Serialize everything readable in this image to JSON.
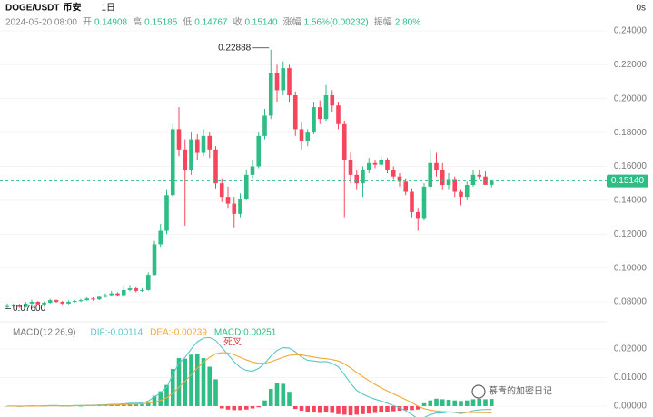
{
  "header": {
    "symbol": "DOGE/USDT",
    "exchange": "币安",
    "interval": "1日",
    "timer": "0s",
    "time": "2024-05-20 08:00",
    "stats": [
      {
        "label": "开",
        "value": "0.14908"
      },
      {
        "label": "高",
        "value": "0.15185"
      },
      {
        "label": "低",
        "value": "0.14767"
      },
      {
        "label": "收",
        "value": "0.15140"
      },
      {
        "label": "涨幅",
        "value": "1.56%(0.00232)"
      },
      {
        "label": "振幅",
        "value": "2.80%"
      }
    ]
  },
  "chart_data": [
    {
      "type": "candlestick",
      "open": [
        0.077,
        0.0775,
        0.078,
        0.077,
        0.079,
        0.08,
        0.0785,
        0.0795,
        0.081,
        0.08,
        0.079,
        0.08,
        0.0805,
        0.081,
        0.082,
        0.0815,
        0.083,
        0.084,
        0.085,
        0.084,
        0.087,
        0.088,
        0.0865,
        0.087,
        0.096,
        0.114,
        0.122,
        0.143,
        0.182,
        0.17,
        0.158,
        0.176,
        0.168,
        0.178,
        0.17,
        0.15,
        0.142,
        0.138,
        0.132,
        0.141,
        0.155,
        0.16,
        0.178,
        0.19,
        0.215,
        0.205,
        0.218,
        0.202,
        0.182,
        0.175,
        0.18,
        0.195,
        0.188,
        0.202,
        0.196,
        0.185,
        0.164,
        0.155,
        0.15,
        0.158,
        0.162,
        0.161,
        0.164,
        0.158,
        0.154,
        0.151,
        0.145,
        0.133,
        0.129,
        0.148,
        0.162,
        0.158,
        0.149,
        0.152,
        0.145,
        0.142,
        0.149,
        0.155,
        0.154,
        0.14908
      ],
      "high": [
        0.079,
        0.079,
        0.0788,
        0.08,
        0.0812,
        0.0805,
        0.0802,
        0.0818,
        0.0815,
        0.0806,
        0.0808,
        0.0812,
        0.0818,
        0.0828,
        0.0826,
        0.0838,
        0.085,
        0.0865,
        0.0856,
        0.0895,
        0.09,
        0.0886,
        0.088,
        0.0975,
        0.116,
        0.126,
        0.146,
        0.185,
        0.195,
        0.176,
        0.18,
        0.179,
        0.182,
        0.18,
        0.172,
        0.153,
        0.148,
        0.142,
        0.144,
        0.158,
        0.164,
        0.18,
        0.194,
        0.22888,
        0.22,
        0.222,
        0.22,
        0.204,
        0.186,
        0.182,
        0.198,
        0.199,
        0.208,
        0.205,
        0.198,
        0.187,
        0.168,
        0.158,
        0.16,
        0.165,
        0.164,
        0.166,
        0.165,
        0.16,
        0.156,
        0.153,
        0.147,
        0.135,
        0.15,
        0.17,
        0.168,
        0.162,
        0.156,
        0.154,
        0.146,
        0.151,
        0.158,
        0.158,
        0.157,
        0.15185
      ],
      "low": [
        0.076,
        0.0768,
        0.0765,
        0.0766,
        0.0785,
        0.0778,
        0.078,
        0.079,
        0.0794,
        0.0784,
        0.0786,
        0.0796,
        0.08,
        0.0806,
        0.0808,
        0.081,
        0.0825,
        0.0834,
        0.0832,
        0.0836,
        0.0862,
        0.0856,
        0.0858,
        0.0866,
        0.0955,
        0.112,
        0.12,
        0.142,
        0.166,
        0.125,
        0.155,
        0.164,
        0.166,
        0.165,
        0.147,
        0.139,
        0.135,
        0.124,
        0.13,
        0.14,
        0.153,
        0.159,
        0.176,
        0.188,
        0.198,
        0.202,
        0.198,
        0.178,
        0.17,
        0.172,
        0.179,
        0.185,
        0.187,
        0.192,
        0.182,
        0.13,
        0.15,
        0.146,
        0.142,
        0.156,
        0.159,
        0.16,
        0.156,
        0.152,
        0.148,
        0.143,
        0.13,
        0.122,
        0.128,
        0.146,
        0.154,
        0.146,
        0.146,
        0.142,
        0.137,
        0.14,
        0.148,
        0.152,
        0.149,
        0.14767
      ],
      "close": [
        0.0775,
        0.078,
        0.077,
        0.079,
        0.08,
        0.0785,
        0.0795,
        0.081,
        0.08,
        0.079,
        0.08,
        0.0805,
        0.081,
        0.082,
        0.0815,
        0.083,
        0.084,
        0.085,
        0.084,
        0.087,
        0.088,
        0.0865,
        0.087,
        0.096,
        0.114,
        0.122,
        0.143,
        0.182,
        0.17,
        0.158,
        0.176,
        0.168,
        0.178,
        0.17,
        0.15,
        0.142,
        0.138,
        0.132,
        0.141,
        0.155,
        0.16,
        0.178,
        0.19,
        0.215,
        0.205,
        0.218,
        0.202,
        0.182,
        0.175,
        0.18,
        0.195,
        0.188,
        0.202,
        0.196,
        0.185,
        0.164,
        0.155,
        0.15,
        0.158,
        0.162,
        0.161,
        0.164,
        0.158,
        0.154,
        0.151,
        0.145,
        0.133,
        0.129,
        0.148,
        0.162,
        0.158,
        0.149,
        0.152,
        0.145,
        0.142,
        0.149,
        0.155,
        0.154,
        0.1491,
        0.1514
      ],
      "up_color": "#2ebd85",
      "down_color": "#f6465d",
      "ylim": [
        0.07,
        0.25
      ],
      "yticks": [
        {
          "value": 0.08,
          "label": "0.08000"
        },
        {
          "value": 0.1,
          "label": "0.10000"
        },
        {
          "value": 0.12,
          "label": "0.12000"
        },
        {
          "value": 0.14,
          "label": "0.14000"
        },
        {
          "value": 0.16,
          "label": "0.16000"
        },
        {
          "value": 0.18,
          "label": "0.18000"
        },
        {
          "value": 0.2,
          "label": "0.20000"
        },
        {
          "value": 0.22,
          "label": "0.22000"
        },
        {
          "value": 0.24,
          "label": "0.24000"
        }
      ],
      "grid": true,
      "high_label": "0.22888",
      "low_label": "0.07600",
      "last_price_label": "0.15140"
    },
    {
      "type": "macd",
      "legend": [
        "MACD(12,26,9)",
        "DIF:-0.00114",
        "DEA:-0.00239",
        "MACD:0.00251"
      ],
      "negative_color": "#f6465d",
      "series": [
        {
          "color": "#2ebd85",
          "values": [
            0,
            0,
            -0.0002,
            0,
            0.0002,
            0,
            0,
            0.0002,
            0.0002,
            0,
            0,
            0.0002,
            0,
            0.0002,
            0.0002,
            0.0002,
            0.0004,
            0.0004,
            0.0004,
            0.0006,
            0.0008,
            0.0006,
            0.0006,
            0.0016,
            0.0036,
            0.0052,
            0.0074,
            0.013,
            0.0168,
            0.0166,
            0.018,
            0.0184,
            0.0168,
            0.0138,
            0.0094,
            -0.0008,
            -0.0012,
            -0.0014,
            -0.0014,
            -0.0012,
            -0.0008,
            -0.0004,
            0.002,
            0.006,
            0.008,
            0.0078,
            0.005,
            -0.001,
            -0.0016,
            -0.002,
            -0.0022,
            -0.0024,
            -0.0022,
            -0.0024,
            -0.0028,
            -0.003,
            -0.0032,
            -0.003,
            -0.0028,
            -0.0026,
            -0.0024,
            -0.0022,
            -0.002,
            -0.0018,
            -0.0016,
            -0.0014,
            -0.0014,
            -0.0012,
            0.001,
            0.002,
            0.0026,
            0.0024,
            0.0022,
            0.002,
            0.0018,
            0.002,
            0.0024,
            0.0026,
            0.0024,
            0.00251
          ]
        },
        {
          "color": "#5cc6c6",
          "values": [
            0,
            0,
            -0.0001,
            0,
            0.0001,
            0,
            0.0001,
            0.0002,
            0.0002,
            0.0001,
            0.0001,
            0.0002,
            0.0002,
            0.0003,
            0.0003,
            0.0004,
            0.0005,
            0.0006,
            0.0006,
            0.0008,
            0.001,
            0.001,
            0.0011,
            0.0018,
            0.0032,
            0.0046,
            0.0066,
            0.011,
            0.015,
            0.017,
            0.02,
            0.0225,
            0.0238,
            0.024,
            0.023,
            0.0205,
            0.018,
            0.0155,
            0.0135,
            0.0125,
            0.0122,
            0.0132,
            0.015,
            0.0175,
            0.0195,
            0.0205,
            0.0203,
            0.019,
            0.0172,
            0.016,
            0.0158,
            0.0155,
            0.0156,
            0.015,
            0.0138,
            0.011,
            0.008,
            0.0055,
            0.0042,
            0.0032,
            0.0024,
            0.0018,
            0.001,
            0.0002,
            -0.0006,
            -0.0016,
            -0.003,
            -0.0044,
            -0.004,
            -0.003,
            -0.0024,
            -0.0024,
            -0.002,
            -0.0022,
            -0.0026,
            -0.0022,
            -0.0016,
            -0.0013,
            -0.0012,
            -0.00114
          ]
        },
        {
          "color": "#f0a838",
          "values": [
            0,
            0,
            0,
            0,
            0,
            0,
            0.0001,
            0.0001,
            0.0001,
            0.0001,
            0.0001,
            0.0001,
            0.0002,
            0.0002,
            0.0002,
            0.0003,
            0.0003,
            0.0004,
            0.0004,
            0.0005,
            0.0006,
            0.0007,
            0.0008,
            0.001,
            0.0014,
            0.002,
            0.0029,
            0.0045,
            0.0066,
            0.0087,
            0.011,
            0.0133,
            0.0154,
            0.0171,
            0.0183,
            0.0187,
            0.0186,
            0.018,
            0.0171,
            0.0162,
            0.0154,
            0.015,
            0.015,
            0.0155,
            0.0163,
            0.0171,
            0.0178,
            0.018,
            0.0179,
            0.0175,
            0.0172,
            0.0168,
            0.0166,
            0.0163,
            0.0158,
            0.0148,
            0.0134,
            0.0118,
            0.0103,
            0.0089,
            0.0076,
            0.0064,
            0.0053,
            0.0043,
            0.0033,
            0.0023,
            0.0012,
            0,
            -0.0009,
            -0.0014,
            -0.0017,
            -0.0019,
            -0.002,
            -0.0021,
            -0.0022,
            -0.0022,
            -0.0022,
            -0.0023,
            -0.0023,
            -0.00239
          ]
        }
      ],
      "ylim": [
        -0.0035,
        0.0265
      ],
      "yticks": [
        {
          "value": 0,
          "label": "0.00000"
        },
        {
          "value": 0.01,
          "label": "0.01000"
        },
        {
          "value": 0.02,
          "label": "0.02000"
        }
      ],
      "annotation": "死叉"
    }
  ],
  "watermark": "慕青的加密日记"
}
